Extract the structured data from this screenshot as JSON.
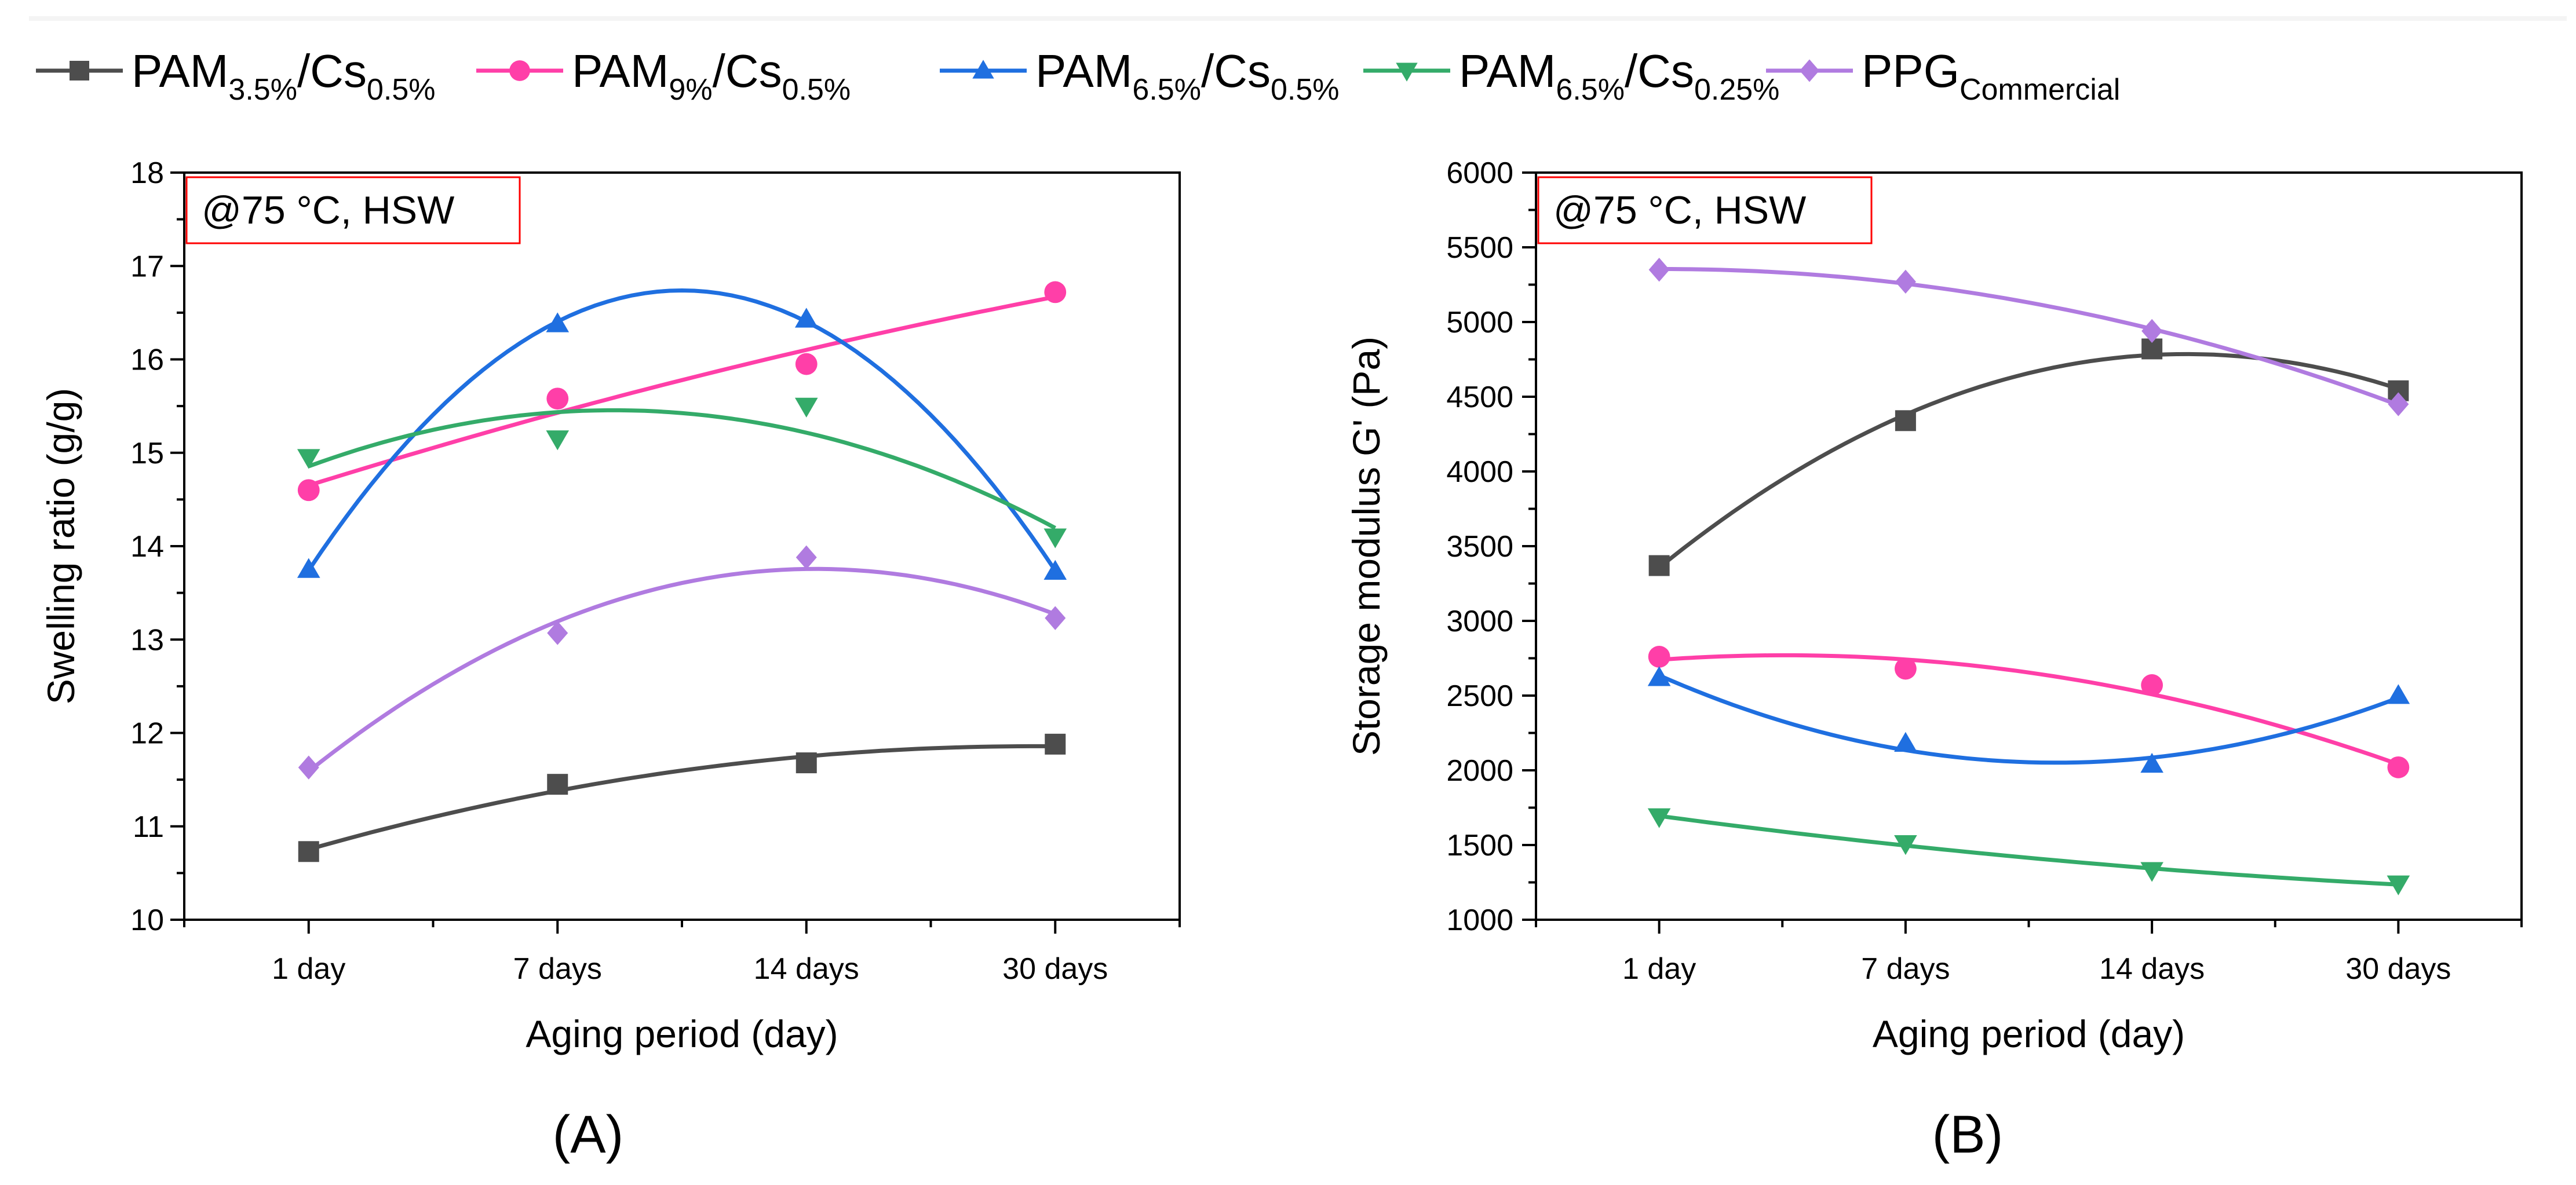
{
  "legend": [
    {
      "base": "PAM",
      "sub1": "3.5%",
      "mid": "/Cs",
      "sub2": "0.5%",
      "color": "#4d4d4d",
      "marker": "square"
    },
    {
      "base": "PAM",
      "sub1": "9%",
      "mid": "/Cs",
      "sub2": "0.5%",
      "color": "#ff3fa8",
      "marker": "circle"
    },
    {
      "base": "PAM",
      "sub1": "6.5%",
      "mid": "/Cs",
      "sub2": "0.5%",
      "color": "#1f6fe0",
      "marker": "triangle-up"
    },
    {
      "base": "PAM",
      "sub1": "6.5%",
      "mid": "/Cs",
      "sub2": "0.25%",
      "color": "#34ab69",
      "marker": "triangle-down"
    },
    {
      "base": "PPG",
      "sub1": "Commercial",
      "mid": "",
      "sub2": "",
      "color": "#b07be0",
      "marker": "diamond"
    }
  ],
  "chart_data": [
    {
      "type": "line",
      "panel_label": "(A)",
      "annotation": "@75 °C, HSW",
      "xlabel": "Aging period (day)",
      "ylabel": "Swelling ratio (g/g)",
      "categories": [
        "1 day",
        "7 days",
        "14 days",
        "30 days"
      ],
      "ylim": [
        10,
        18
      ],
      "yticks": [
        10,
        11,
        12,
        13,
        14,
        15,
        16,
        17,
        18
      ],
      "series": [
        {
          "name": "PAM3.5%/Cs0.5%",
          "values": [
            10.73,
            11.45,
            11.68,
            11.88
          ]
        },
        {
          "name": "PAM9%/Cs0.5%",
          "values": [
            14.6,
            15.58,
            15.95,
            16.72
          ]
        },
        {
          "name": "PAM6.5%/Cs0.5%",
          "values": [
            13.75,
            16.38,
            16.43,
            13.73
          ]
        },
        {
          "name": "PAM6.5%/Cs0.25%",
          "values": [
            14.95,
            15.15,
            15.5,
            14.1
          ]
        },
        {
          "name": "PPGCommercial",
          "values": [
            11.63,
            13.07,
            13.88,
            13.23
          ]
        }
      ]
    },
    {
      "type": "line",
      "panel_label": "(B)",
      "annotation": "@75 °C, HSW",
      "xlabel": "Aging period (day)",
      "ylabel": "Storage modulus G' (Pa)",
      "categories": [
        "1 day",
        "7 days",
        "14 days",
        "30 days"
      ],
      "ylim": [
        1000,
        6000
      ],
      "yticks": [
        1000,
        1500,
        2000,
        2500,
        3000,
        3500,
        4000,
        4500,
        5000,
        5500,
        6000
      ],
      "series": [
        {
          "name": "PAM3.5%/Cs0.5%",
          "values": [
            3370,
            4340,
            4820,
            4540
          ]
        },
        {
          "name": "PAM9%/Cs0.5%",
          "values": [
            2760,
            2680,
            2570,
            2020
          ]
        },
        {
          "name": "PAM6.5%/Cs0.5%",
          "values": [
            2620,
            2180,
            2040,
            2500
          ]
        },
        {
          "name": "PAM6.5%/Cs0.25%",
          "values": [
            1690,
            1510,
            1330,
            1240
          ]
        },
        {
          "name": "PPGCommercial",
          "values": [
            5350,
            5270,
            4940,
            4450
          ]
        }
      ]
    }
  ]
}
